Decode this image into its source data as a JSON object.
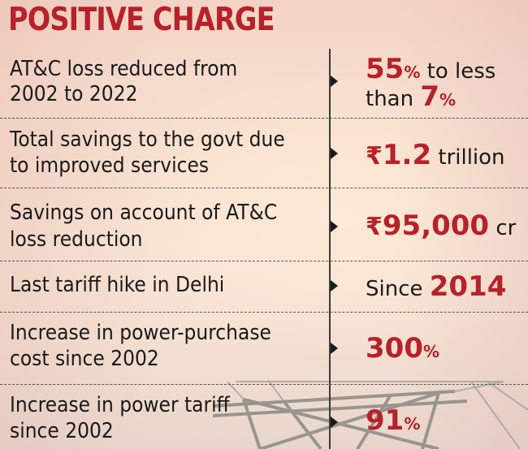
{
  "title": "POSITIVE CHARGE",
  "rows": [
    {
      "label_line1": "AT&C loss reduced from",
      "label_line2": "2002 to 2022",
      "value_big1": "55",
      "value_unit1": "%",
      "value_text1": " to less",
      "value_text2": "than ",
      "value_big2": "7",
      "value_unit2": "%"
    },
    {
      "label_line1": "Total savings to the govt due",
      "label_line2": "to improved services",
      "value_prefix": "₹",
      "value_big": "1.2",
      "value_suffix": " trillion"
    },
    {
      "label_line1": "Savings on account of AT&C",
      "label_line2": "loss reduction",
      "value_prefix": "₹",
      "value_big": "95,000",
      "value_suffix": " cr"
    },
    {
      "label_line1": "Last tariff hike in Delhi",
      "value_prefix": "Since ",
      "value_big": "2014"
    },
    {
      "label_line1": "Increase in power-purchase",
      "label_line2": "cost since 2002",
      "value_big": "300",
      "value_unit": "%"
    },
    {
      "label_line1": "Increase in power tariff",
      "label_line2": "since 2002",
      "value_big": "91",
      "value_unit": "%"
    }
  ]
}
